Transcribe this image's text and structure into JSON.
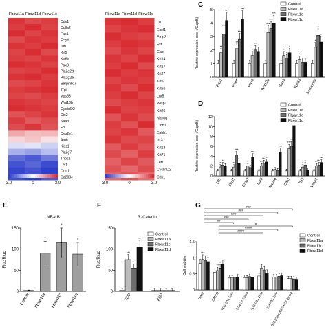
{
  "panel_labels": {
    "c": "C",
    "d": "D",
    "e": "E",
    "f": "F",
    "g": "G"
  },
  "colors": {
    "control": "#ffffff",
    "fbxw11a": "#bdbdbd",
    "fbxw11c": "#6e6e6e",
    "fbxw11d": "#111111",
    "heat_high": "#d7272c",
    "heat_mid": "#ffffff",
    "heat_low": "#2738c9"
  },
  "chart_data": [
    {
      "type": "heatmap",
      "columns": [
        "Fbxw11a",
        "Fbxw11d",
        "Fbxw11c"
      ],
      "genes": [
        "Cdx1",
        "Colla2",
        "Fas1",
        "Fcgrt",
        "Illm",
        "Krt5",
        "Krt6b",
        "Pax8",
        "Pla2g2d",
        "Pla2g2e",
        "Serpinb1c",
        "Tfpi",
        "Vps53",
        "Wnt10b",
        "CyclinD2",
        "Dio2",
        "Saa3",
        "F8",
        "Cyp2e1",
        "Amh",
        "Kiss1",
        "Pla2g7",
        "Thbs2",
        "Lef1",
        "Orm1",
        "Cd209e"
      ],
      "values": [
        [
          2.8,
          2.5,
          2.7
        ],
        [
          2.7,
          2.9,
          2.6
        ],
        [
          2.9,
          2.6,
          2.8
        ],
        [
          2.5,
          2.8,
          2.7
        ],
        [
          2.8,
          2.7,
          2.9
        ],
        [
          2.6,
          2.9,
          2.5
        ],
        [
          2.7,
          2.6,
          2.8
        ],
        [
          2.9,
          2.8,
          2.6
        ],
        [
          2.6,
          2.7,
          2.9
        ],
        [
          2.8,
          2.9,
          2.7
        ],
        [
          2.5,
          2.6,
          2.8
        ],
        [
          2.7,
          2.8,
          2.9
        ],
        [
          2.6,
          2.5,
          2.7
        ],
        [
          2.8,
          2.7,
          2.6
        ],
        [
          2.9,
          2.8,
          2.7
        ],
        [
          2.4,
          2.6,
          2.8
        ],
        [
          2.7,
          2.3,
          2.5
        ],
        [
          2.5,
          2.8,
          2.4
        ],
        [
          1.2,
          0.9,
          1.0
        ],
        [
          0.6,
          0.8,
          0.4
        ],
        [
          -0.5,
          -0.4,
          -0.7
        ],
        [
          -1.2,
          -1.4,
          -1.0
        ],
        [
          -2.2,
          -2.5,
          -2.0
        ],
        [
          -2.6,
          -2.3,
          -2.7
        ],
        [
          -2.8,
          -2.6,
          -2.9
        ],
        [
          -2.7,
          -2.9,
          -2.5
        ]
      ],
      "scale": {
        "min": -3.0,
        "mid": 0,
        "max": 3.0
      },
      "scale_labels": [
        "-3.0",
        "0",
        "3.0"
      ]
    },
    {
      "type": "heatmap",
      "columns": [
        "Fbxw11a",
        "Fbxw11d",
        "Fbxw11c"
      ],
      "genes": [
        "Dll1",
        "Ecel1",
        "Emp2",
        "Fst",
        "Gast",
        "Krt14",
        "Krt17",
        "Krt27",
        "Krt5",
        "Krt6b",
        "Lgr5",
        "Wisp1",
        "Krt26",
        "Nanog",
        "Cldn1",
        "Ephb1",
        "Irx3",
        "Krt13",
        "Krt71",
        "Lef1",
        "CyclinD2",
        "Cdx1"
      ],
      "values": [
        [
          2.8,
          2.9,
          2.7
        ],
        [
          2.6,
          2.8,
          2.9
        ],
        [
          2.9,
          2.7,
          2.6
        ],
        [
          2.7,
          2.9,
          2.8
        ],
        [
          2.5,
          2.8,
          2.6
        ],
        [
          2.8,
          2.6,
          2.9
        ],
        [
          2.7,
          2.9,
          2.5
        ],
        [
          2.9,
          2.7,
          2.8
        ],
        [
          2.6,
          2.8,
          2.7
        ],
        [
          2.8,
          2.5,
          2.9
        ],
        [
          2.7,
          2.9,
          2.6
        ],
        [
          2.5,
          2.7,
          2.8
        ],
        [
          2.9,
          2.6,
          2.7
        ],
        [
          2.4,
          2.8,
          2.5
        ],
        [
          2.7,
          2.4,
          2.9
        ],
        [
          2.6,
          2.8,
          2.3
        ],
        [
          2.8,
          2.5,
          2.6
        ],
        [
          2.3,
          2.7,
          2.4
        ],
        [
          2.5,
          2.2,
          2.7
        ],
        [
          2.2,
          2.6,
          2.3
        ],
        [
          2.4,
          2.1,
          2.5
        ],
        [
          2.1,
          2.4,
          2.0
        ]
      ],
      "scale": {
        "min": -3.0,
        "mid": 0,
        "max": 3.0
      },
      "scale_labels": [
        "-3.0",
        "0",
        "3.0"
      ]
    },
    {
      "type": "bar",
      "ylabel": "Relative expression level (/Gapdh)",
      "categories": [
        "Fas1",
        "Fcgrt",
        "Pax8",
        "Wnt10b",
        "Saa3",
        "Vps53",
        "Serpinb1c"
      ],
      "ylim": [
        0,
        5
      ],
      "yticks": [
        0,
        1,
        2,
        3,
        4,
        5
      ],
      "legend": [
        "Control",
        "Fbxw11a",
        "Fbxw11c",
        "Fbxw11d"
      ],
      "series": [
        {
          "name": "Control",
          "values": [
            1,
            1,
            1,
            1,
            1,
            1,
            1
          ]
        },
        {
          "name": "Fbxw11a",
          "values": [
            1.8,
            2.1,
            1.6,
            3.3,
            1.6,
            1.3,
            2.2
          ]
        },
        {
          "name": "Fbxw11c",
          "values": [
            3.2,
            2.8,
            2.0,
            3.6,
            1.4,
            1.1,
            3.1
          ]
        },
        {
          "name": "Fbxw11d",
          "values": [
            4.2,
            4.3,
            1.9,
            4.0,
            1.8,
            1.1,
            2.6
          ]
        }
      ],
      "significance": [
        [
          "**",
          "***",
          "***"
        ],
        [
          "**",
          "***",
          "***"
        ],
        [
          "*",
          "**",
          "*"
        ],
        [
          "***",
          "***",
          "***"
        ],
        [
          "*",
          "*",
          "*"
        ],
        [
          "*",
          "",
          ""
        ],
        [
          "*",
          "*",
          "*"
        ]
      ]
    },
    {
      "type": "bar",
      "ylabel": "Relative expression level (/Gapdh)",
      "categories": [
        "Dll1",
        "Ecel1",
        "Emp2",
        "Lgr5",
        "Nanog",
        "Cdh1",
        "Tcf3",
        "Wisp1"
      ],
      "ylim": [
        0,
        12
      ],
      "yticks": [
        0,
        2,
        4,
        6,
        8,
        10,
        12
      ],
      "legend": [
        "Control",
        "Fbxw11a",
        "Fbxw11c",
        "Fbxw11d"
      ],
      "series": [
        {
          "name": "Control",
          "values": [
            1,
            1,
            1,
            1,
            1,
            1,
            1,
            1
          ]
        },
        {
          "name": "Fbxw11a",
          "values": [
            1.8,
            1.8,
            2.0,
            2.0,
            1.3,
            5.5,
            1.8,
            2.0
          ]
        },
        {
          "name": "Fbxw11c",
          "values": [
            2.2,
            4.2,
            1.7,
            2.6,
            1.1,
            6.0,
            2.2,
            2.2
          ]
        },
        {
          "name": "Fbxw11d",
          "values": [
            2.0,
            2.5,
            3.8,
            2.8,
            4.8,
            10.2,
            1.2,
            2.7
          ]
        }
      ],
      "significance": [
        [
          "*",
          "*",
          ""
        ],
        [
          "**",
          "***",
          "*"
        ],
        [
          "*",
          "*",
          "***"
        ],
        [
          "***",
          "***",
          "***"
        ],
        [
          "",
          "",
          "***"
        ],
        [
          "***",
          "***",
          "***"
        ],
        [
          "*",
          "*",
          ""
        ],
        [
          "***",
          "***",
          "***"
        ]
      ]
    },
    {
      "type": "bar",
      "title": "NF-κ B",
      "ylabel": "Fluc/Rluc",
      "categories": [
        "Control",
        "Fbxw11a",
        "Fbxw11c",
        "Fbxw11d"
      ],
      "values": [
        2,
        90,
        115,
        88
      ],
      "errors": [
        1,
        28,
        35,
        28
      ],
      "ylim": [
        0,
        150
      ],
      "yticks": [
        0,
        50,
        100,
        150
      ],
      "significance": [
        "",
        "*",
        "*",
        "*"
      ]
    },
    {
      "type": "bar",
      "title": "β -Catenin",
      "ylabel": "Fluc/Rluc",
      "categories": [
        "TOP",
        "FOP"
      ],
      "ylim": [
        0,
        150
      ],
      "yticks": [
        0,
        50,
        100,
        150
      ],
      "legend": [
        "Control",
        "Fbxw11a",
        "Fbxw11c",
        "Fbxw11d"
      ],
      "series": [
        {
          "name": "Control",
          "values": [
            2,
            2
          ]
        },
        {
          "name": "Fbxw11a",
          "values": [
            75,
            2
          ]
        },
        {
          "name": "Fbxw11c",
          "values": [
            55,
            2
          ]
        },
        {
          "name": "Fbxw11d",
          "values": [
            105,
            2
          ]
        }
      ],
      "significance": [
        [
          "***",
          "***",
          "**"
        ],
        [
          "",
          "",
          ""
        ]
      ]
    },
    {
      "type": "bar",
      "ylabel": "Cell viability",
      "categories": [
        "blank",
        "DMSO",
        "ICG-001 5um",
        "JSH-23 15um",
        "ICG-001 2um",
        "JSH-23 2um",
        "ICG-001 (2um)&JSH-23 (5um)"
      ],
      "ylim": [
        0,
        1.5
      ],
      "yticks": [
        0,
        0.5,
        1.0,
        1.5
      ],
      "legend": [
        "Control",
        "Fbxw11a",
        "Fbxw11c",
        "Fbxw11d"
      ],
      "series": [
        {
          "name": "Control",
          "values": [
            0.82,
            0.55,
            0.38,
            0.38,
            0.43,
            0.4,
            0.35
          ]
        },
        {
          "name": "Fbxw11a",
          "values": [
            0.95,
            0.6,
            0.37,
            0.37,
            0.68,
            0.4,
            0.35
          ]
        },
        {
          "name": "Fbxw11c",
          "values": [
            0.92,
            0.68,
            0.39,
            0.41,
            0.62,
            0.42,
            0.34
          ]
        },
        {
          "name": "Fbxw11d",
          "values": [
            0.88,
            0.8,
            0.4,
            0.39,
            0.53,
            0.44,
            0.33
          ]
        }
      ],
      "brackets": [
        "###",
        "###",
        "###",
        "###",
        "##",
        "#",
        "####",
        "####"
      ],
      "significance": [
        [
          "***",
          "",
          ""
        ],
        [
          "**",
          "*",
          ""
        ],
        [
          "",
          "",
          ""
        ],
        [
          "",
          "",
          ""
        ],
        [
          "",
          "",
          ""
        ],
        [
          "",
          "",
          ""
        ],
        [
          "",
          "",
          ""
        ]
      ]
    }
  ]
}
